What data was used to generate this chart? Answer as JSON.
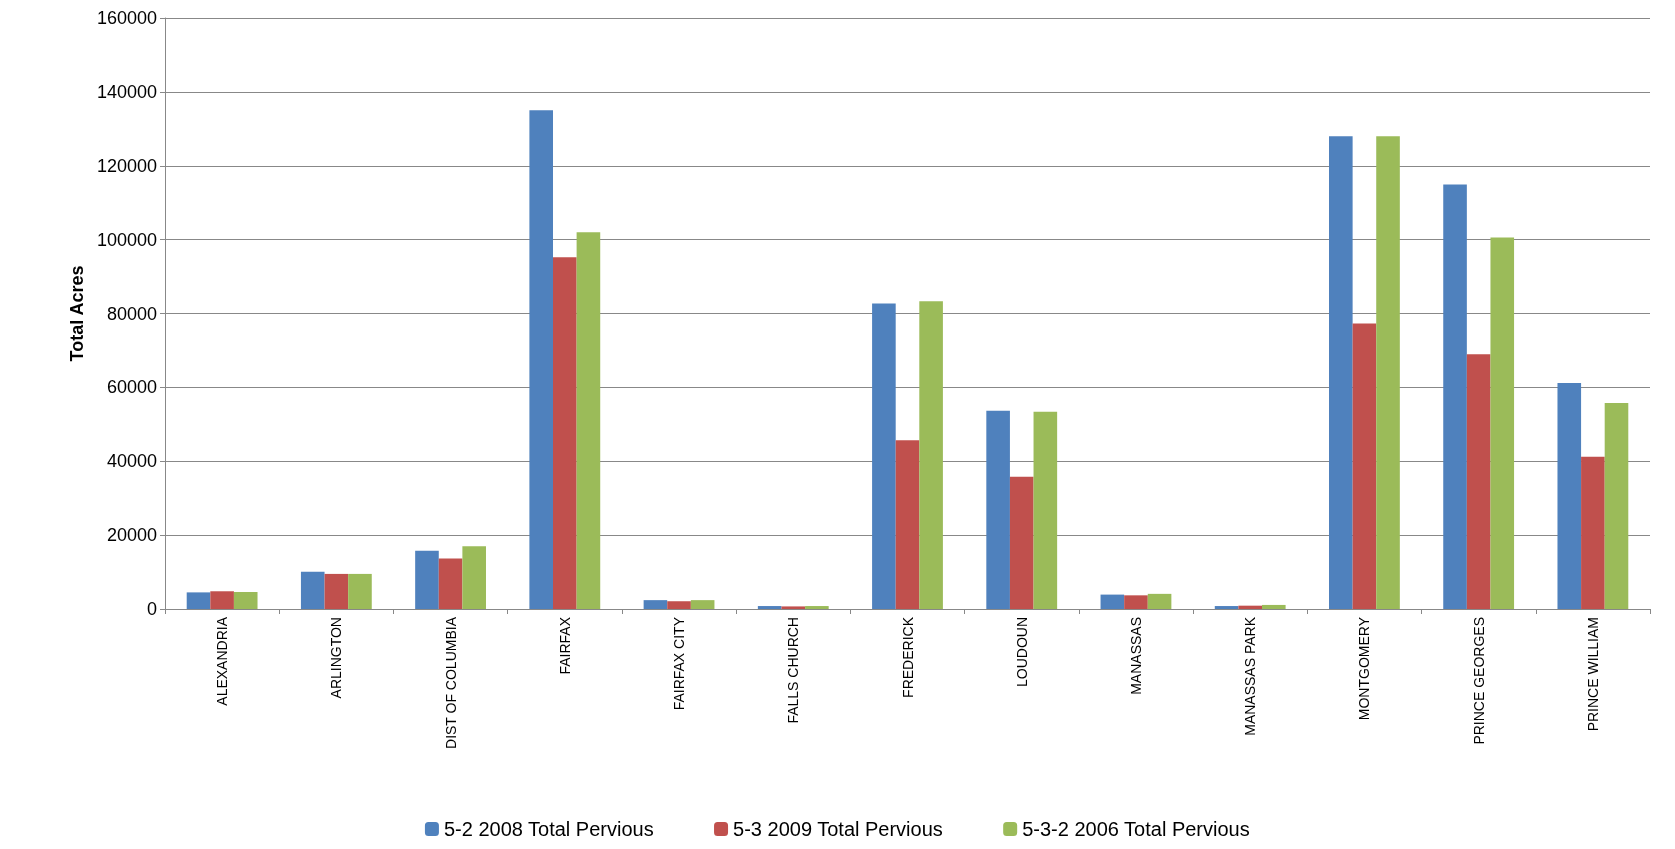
{
  "chart_data": {
    "type": "bar",
    "ylabel": "Total Acres",
    "categories": [
      "ALEXANDRIA",
      "ARLINGTON",
      "DIST OF COLUMBIA",
      "FAIRFAX",
      "FAIRFAX CITY",
      "FALLS CHURCH",
      "FREDERICK",
      "LOUDOUN",
      "MANASSAS",
      "MANASSAS PARK",
      "MONTGOMERY",
      "PRINCE GEORGES",
      "PRINCE WILLIAM"
    ],
    "series": [
      {
        "name": "5-2 2008 Total Pervious",
        "color": "#4f81bd",
        "values": [
          4500,
          10100,
          15800,
          135000,
          2400,
          800,
          82700,
          53700,
          3900,
          800,
          128000,
          114900,
          61200
        ]
      },
      {
        "name": "5-3 2009 Total Pervious",
        "color": "#c0504d",
        "values": [
          4800,
          9500,
          13700,
          95200,
          2100,
          700,
          45700,
          35800,
          3700,
          900,
          77300,
          69000,
          41200
        ]
      },
      {
        "name": "5-3-2 2006 Total Pervious",
        "color": "#9bbb59",
        "values": [
          4600,
          9500,
          17000,
          102000,
          2400,
          800,
          83300,
          53400,
          4100,
          1100,
          128000,
          100600,
          55800
        ]
      }
    ],
    "ylim": [
      0,
      160000
    ],
    "yticks": [
      0,
      20000,
      40000,
      60000,
      80000,
      100000,
      120000,
      140000,
      160000
    ],
    "grid": "y",
    "legend": "bottom"
  }
}
